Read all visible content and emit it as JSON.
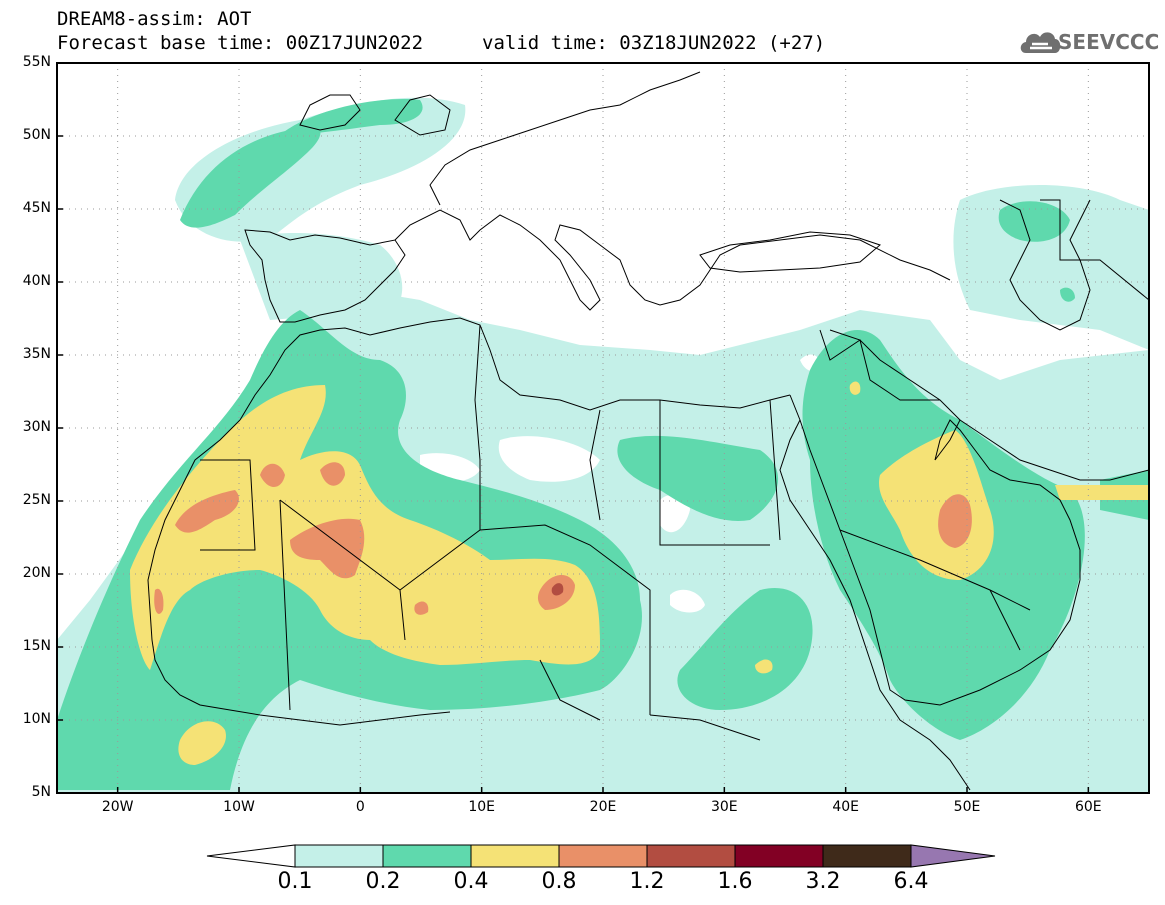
{
  "header": {
    "line1": "DREAM8-assim: AOT",
    "line2": "Forecast base time: 00Z17JUN2022",
    "line3": "valid time: 03Z18JUN2022 (+27)"
  },
  "logo": {
    "text": "SEEVCCC",
    "icon": "cloud-icon"
  },
  "map": {
    "projection": "equirectangular",
    "lon_range": [
      -25,
      65
    ],
    "lat_range": [
      5,
      55
    ],
    "grid": true,
    "lat_labels": [
      "55N",
      "50N",
      "45N",
      "40N",
      "35N",
      "30N",
      "25N",
      "20N",
      "15N",
      "10N",
      "5N"
    ],
    "lon_labels": [
      "20W",
      "10W",
      "0",
      "10E",
      "20E",
      "30E",
      "40E",
      "50E",
      "60E"
    ]
  },
  "colorbar": {
    "labels": [
      "0.1",
      "0.2",
      "0.4",
      "0.8",
      "1.2",
      "1.6",
      "3.2",
      "6.4"
    ],
    "colors": [
      "#c4f0e8",
      "#5fd9ad",
      "#f5e276",
      "#e99068",
      "#b24d41",
      "#820024",
      "#3f2a1a"
    ],
    "overflow_color": "#9777b0",
    "underflow_color": "#ffffff"
  }
}
